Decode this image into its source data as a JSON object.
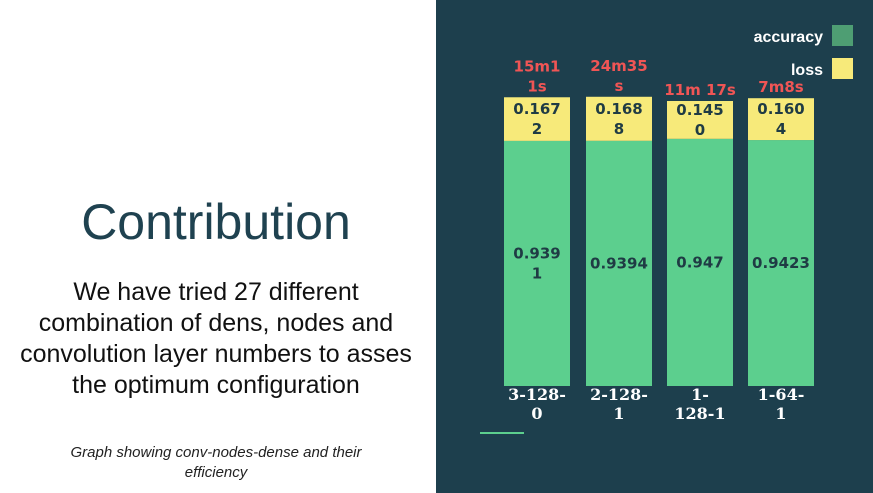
{
  "slide": {
    "title": "Contribution",
    "body": "We have tried 27 different combination of dens, nodes and convolution layer numbers to asses the optimum configuration",
    "caption": "Graph showing conv-nodes-dense and their efficiency"
  },
  "chart_data": {
    "type": "bar",
    "stacked": true,
    "categories": [
      "3-128-0",
      "2-128-1",
      "1-128-1",
      "1-64-1"
    ],
    "category_label_lines": [
      [
        "3-128-",
        "0"
      ],
      [
        "2-128-",
        "1"
      ],
      [
        "1-",
        "128-1"
      ],
      [
        "1-64-",
        "1"
      ]
    ],
    "series": [
      {
        "name": "accuracy",
        "values": [
          0.9391,
          0.9394,
          0.947,
          0.9423
        ],
        "color": "#5ccf8e",
        "legend_color": "#4e9e73",
        "label_lines": [
          [
            "0.939",
            "1"
          ],
          [
            "0.9394"
          ],
          [
            "0.947"
          ],
          [
            "0.9423"
          ]
        ]
      },
      {
        "name": "loss",
        "values": [
          0.1672,
          0.1688,
          0.145,
          0.1604
        ],
        "color": "#f7ea7a",
        "legend_color": "#f7ea7a",
        "label_lines": [
          [
            "0.167",
            "2"
          ],
          [
            "0.168",
            "8"
          ],
          [
            "0.145",
            "0"
          ],
          [
            "0.160",
            "4"
          ]
        ]
      }
    ],
    "annotations": [
      [
        "15m1",
        "1s"
      ],
      [
        "24m35",
        "s"
      ],
      [
        "11m 17s"
      ],
      [
        "7m8s"
      ]
    ],
    "legend": "top-right",
    "grid": false
  }
}
